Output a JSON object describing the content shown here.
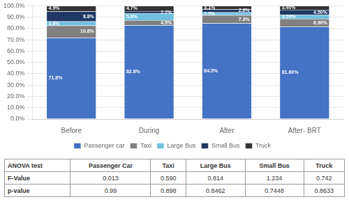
{
  "chart_data": {
    "type": "bar",
    "stacked": true,
    "categories": [
      "Before",
      "During",
      "After",
      "After- BRT"
    ],
    "series": [
      {
        "name": "Passenger car",
        "color": "#4472C4",
        "values": [
          71.8,
          82.8,
          84.5,
          81.6
        ],
        "value_labels": [
          "71.8%",
          "82.8%",
          "84.5%",
          "81.60%"
        ]
      },
      {
        "name": "Taxi",
        "color": "#808080",
        "values": [
          10.8,
          4.5,
          7.3,
          6.9
        ],
        "value_labels": [
          "10.8%",
          "4.5%",
          "7.3%",
          "6.90%"
        ]
      },
      {
        "name": "Large Bus",
        "color": "#70C0E0",
        "values": [
          3.6,
          5.8,
          2.5,
          3.5
        ],
        "value_labels": [
          "3.6%",
          "5.8%",
          "2.5%",
          "3.50%"
        ]
      },
      {
        "name": "Small Bus",
        "color": "#1F3864",
        "values": [
          8.8,
          2.2,
          2.6,
          4.5
        ],
        "value_labels": [
          "8.8%",
          "2.2%",
          "2.6%",
          "4.50%"
        ]
      },
      {
        "name": "Truck",
        "color": "#333333",
        "values": [
          4.9,
          4.7,
          3.1,
          3.4
        ],
        "value_labels": [
          "4.9%",
          "4.7%",
          "3.1%",
          "3.40%"
        ]
      }
    ],
    "ylim": [
      0,
      100
    ],
    "yticks": [
      {
        "value": 0,
        "label": "0.0%"
      },
      {
        "value": 10,
        "label": "10.0%"
      },
      {
        "value": 20,
        "label": "20.0%"
      },
      {
        "value": 30,
        "label": "30.0%"
      },
      {
        "value": 40,
        "label": "40.0%"
      },
      {
        "value": 50,
        "label": "50.0%"
      },
      {
        "value": 60,
        "label": "60.0%"
      },
      {
        "value": 70,
        "label": "70.0%"
      },
      {
        "value": 80,
        "label": "80.0%"
      },
      {
        "value": 90,
        "label": "90.0%"
      },
      {
        "value": 100,
        "label": "100.0%"
      }
    ],
    "grid": true,
    "legend": "bottom",
    "data_labels": true,
    "table": {
      "columns": [
        "ANOVA test",
        "Passenger Car",
        "Taxi",
        "Large Bus",
        "Small Bus",
        "Truck"
      ],
      "rows": [
        [
          "F-Value",
          "0.013",
          "0.590",
          "0.814",
          "1.234",
          "0.742"
        ],
        [
          "p-value",
          "0.99",
          "0.898",
          "0.8462",
          "0.7448",
          "0.8633"
        ]
      ]
    }
  }
}
